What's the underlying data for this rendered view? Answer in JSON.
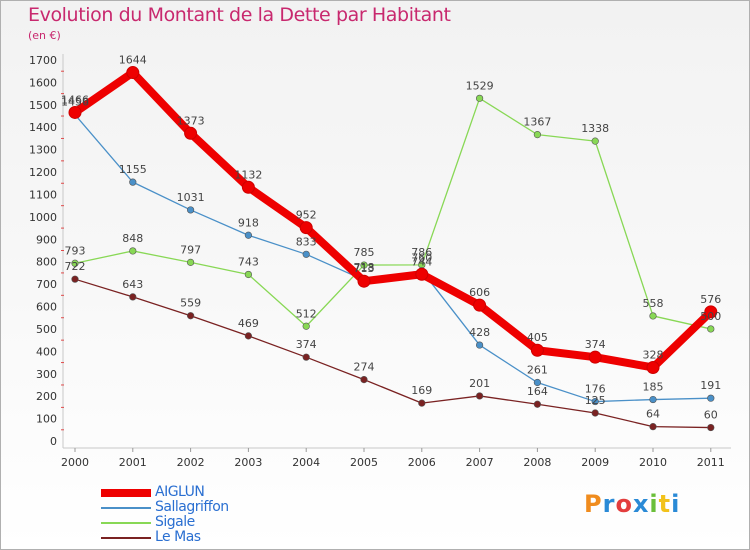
{
  "title": "Evolution du Montant de la Dette par Habitant",
  "subtitle": "(en €)",
  "logo": {
    "text": "Proxiti",
    "colors": [
      "#f08c1e",
      "#2a8ad6",
      "#e33d3d",
      "#2a8ad6",
      "#6bbf3a",
      "#f2c21b",
      "#2a8ad6"
    ]
  },
  "chart_data": {
    "type": "line",
    "x": [
      "2000",
      "2001",
      "2002",
      "2003",
      "2004",
      "2005",
      "2006",
      "2007",
      "2008",
      "2009",
      "2010",
      "2011"
    ],
    "ylim": [
      0,
      1700
    ],
    "yticks": [
      0,
      100,
      200,
      300,
      400,
      500,
      600,
      700,
      800,
      900,
      1000,
      1100,
      1200,
      1300,
      1400,
      1500,
      1600,
      1700
    ],
    "grid": false,
    "legend_position": "bottom-left",
    "series": [
      {
        "name": "AIGLUN",
        "color": "#ee0000",
        "values": [
          1466,
          1644,
          1373,
          1132,
          952,
          713,
          744,
          606,
          405,
          374,
          328,
          576
        ]
      },
      {
        "name": "Sallagriffon",
        "color": "#4a90c8",
        "values": [
          1456,
          1155,
          1031,
          918,
          833,
          718,
          760,
          428,
          261,
          176,
          185,
          191
        ]
      },
      {
        "name": "Sigale",
        "color": "#88d855",
        "values": [
          793,
          848,
          797,
          743,
          512,
          785,
          786,
          1529,
          1367,
          1338,
          558,
          500
        ]
      },
      {
        "name": "Le Mas",
        "color": "#7a2222",
        "values": [
          722,
          643,
          559,
          469,
          374,
          274,
          169,
          201,
          164,
          125,
          64,
          60
        ]
      }
    ]
  }
}
